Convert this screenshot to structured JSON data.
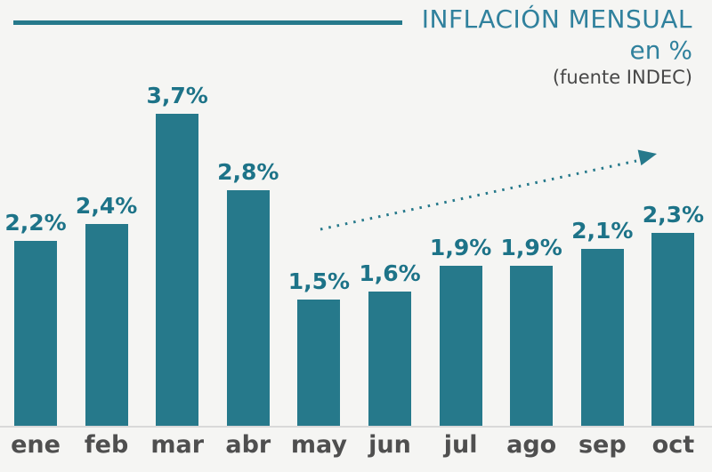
{
  "header": {
    "title": "INFLACIÓN MENSUAL",
    "subtitle": "en %",
    "source": "(fuente INDEC)"
  },
  "chart_data": {
    "type": "bar",
    "title": "INFLACIÓN MENSUAL",
    "subtitle": "en %",
    "source": "(fuente INDEC)",
    "categories": [
      "ene",
      "feb",
      "mar",
      "abr",
      "may",
      "jun",
      "jul",
      "ago",
      "sep",
      "oct"
    ],
    "values": [
      2.2,
      2.4,
      3.7,
      2.8,
      1.5,
      1.6,
      1.9,
      1.9,
      2.1,
      2.3
    ],
    "value_labels": [
      "2,2%",
      "2,4%",
      "3,7%",
      "2,8%",
      "1,5%",
      "1,6%",
      "1,9%",
      "1,9%",
      "2,1%",
      "2,3%"
    ],
    "unit": "%",
    "ylim": [
      0,
      4
    ],
    "grid": false,
    "legend": false,
    "annotations": [
      {
        "type": "dotted-trend-arrow",
        "from_category": "may",
        "to_category": "oct",
        "direction": "up-right"
      }
    ],
    "colors": {
      "bar": "#26798b",
      "label": "#1d7388",
      "title": "#30819d",
      "axis_label": "#4f4f4f",
      "source_text": "#474747",
      "baseline": "#d9d9d9",
      "background": "#f5f5f3",
      "rule": "#26798b",
      "arrow": "#26798b"
    }
  }
}
